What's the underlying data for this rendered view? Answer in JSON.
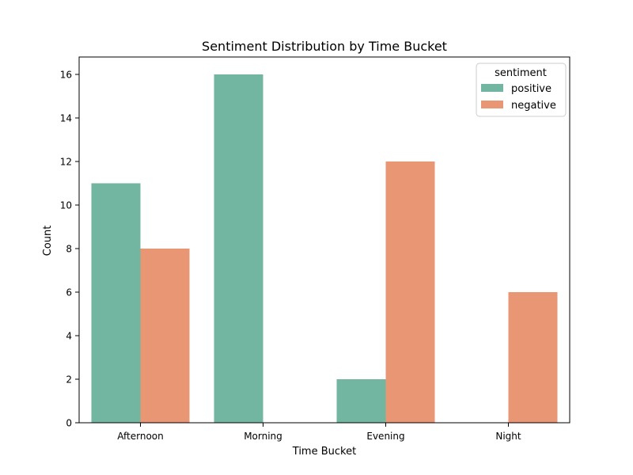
{
  "chart_data": {
    "type": "bar",
    "title": "Sentiment Distribution by Time Bucket",
    "xlabel": "Time Bucket",
    "ylabel": "Count",
    "categories": [
      "Afternoon",
      "Morning",
      "Evening",
      "Night"
    ],
    "series": [
      {
        "name": "positive",
        "color": "#72b6a1",
        "values": [
          11,
          16,
          2,
          0
        ]
      },
      {
        "name": "negative",
        "color": "#e99675",
        "values": [
          8,
          0,
          12,
          6
        ]
      }
    ],
    "yticks": [
      0,
      2,
      4,
      6,
      8,
      10,
      12,
      14,
      16
    ],
    "ylim": [
      0,
      16.8
    ],
    "grid": false,
    "legend": {
      "title": "sentiment",
      "placement": "top-right"
    }
  }
}
